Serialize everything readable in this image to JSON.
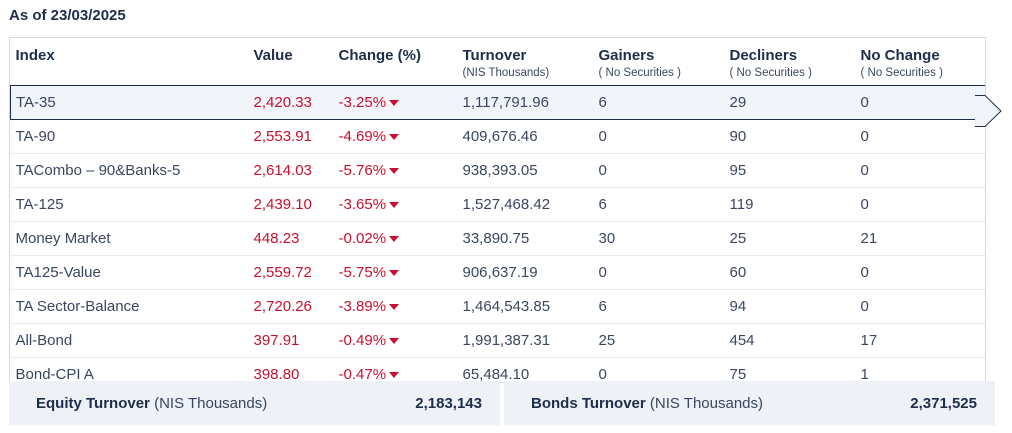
{
  "as_of": "As of 23/03/2025",
  "headers": {
    "index": "Index",
    "value": "Value",
    "change": "Change (%)",
    "turnover": "Turnover",
    "turnover_sub": "(NIS Thousands)",
    "gainers": "Gainers",
    "gainers_sub": "( No Securities )",
    "decliners": "Decliners",
    "decliners_sub": "( No Securities )",
    "nochange": "No Change",
    "nochange_sub": "( No Securities )"
  },
  "rows": [
    {
      "index": "TA-35",
      "value": "2,420.33",
      "change": "-3.25%",
      "turnover": "1,117,791.96",
      "gainers": "6",
      "decliners": "29",
      "nochange": "0"
    },
    {
      "index": "TA-90",
      "value": "2,553.91",
      "change": "-4.69%",
      "turnover": "409,676.46",
      "gainers": "0",
      "decliners": "90",
      "nochange": "0"
    },
    {
      "index": "TACombo – 90&Banks-5",
      "value": "2,614.03",
      "change": "-5.76%",
      "turnover": "938,393.05",
      "gainers": "0",
      "decliners": "95",
      "nochange": "0"
    },
    {
      "index": "TA-125",
      "value": "2,439.10",
      "change": "-3.65%",
      "turnover": "1,527,468.42",
      "gainers": "6",
      "decliners": "119",
      "nochange": "0"
    },
    {
      "index": "Money Market",
      "value": "448.23",
      "change": "-0.02%",
      "turnover": "33,890.75",
      "gainers": "30",
      "decliners": "25",
      "nochange": "21"
    },
    {
      "index": "TA125-Value",
      "value": "2,559.72",
      "change": "-5.75%",
      "turnover": "906,637.19",
      "gainers": "0",
      "decliners": "60",
      "nochange": "0"
    },
    {
      "index": "TA Sector-Balance",
      "value": "2,720.26",
      "change": "-3.89%",
      "turnover": "1,464,543.85",
      "gainers": "6",
      "decliners": "94",
      "nochange": "0"
    },
    {
      "index": "All-Bond",
      "value": "397.91",
      "change": "-0.49%",
      "turnover": "1,991,387.31",
      "gainers": "25",
      "decliners": "454",
      "nochange": "17"
    },
    {
      "index": "Bond-CPI A",
      "value": "398.80",
      "change": "-0.47%",
      "turnover": "65,484.10",
      "gainers": "0",
      "decliners": "75",
      "nochange": "1"
    }
  ],
  "footer": {
    "equity_label": "Equity Turnover",
    "equity_unit": "(NIS Thousands)",
    "equity_value": "2,183,143",
    "bonds_label": "Bonds Turnover",
    "bonds_unit": "(NIS Thousands)",
    "bonds_value": "2,371,525"
  },
  "colors": {
    "negative": "#c8102e",
    "text": "#1f2d4d",
    "footer_bg": "#eef1f5"
  }
}
